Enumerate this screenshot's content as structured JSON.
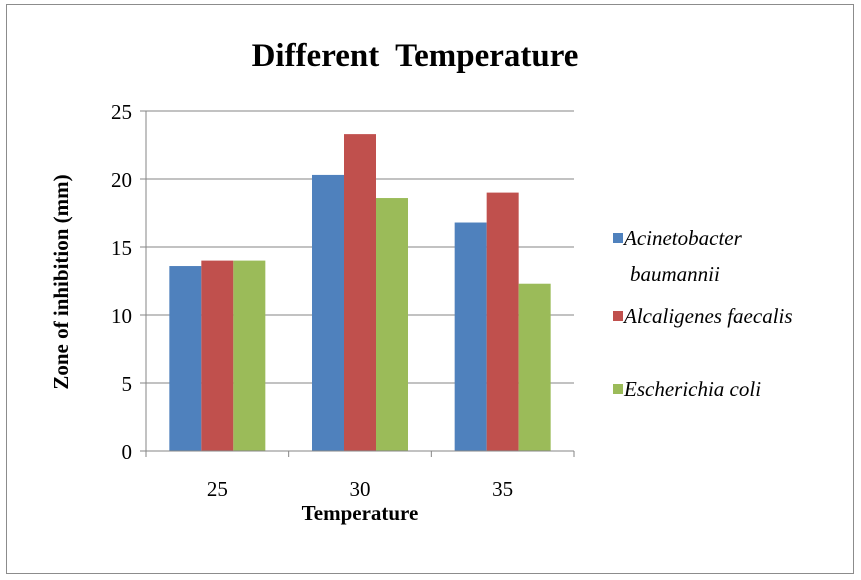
{
  "chart_data": {
    "type": "bar",
    "title": "Different  Temperature",
    "xlabel": "Temperature",
    "ylabel": "Zone of inhibition (mm)",
    "categories": [
      "25",
      "30",
      "35"
    ],
    "series": [
      {
        "name": "Acinetobacter baumannii",
        "name_lines": [
          "Acinetobacter",
          "baumannii"
        ],
        "color": "#4f81bd",
        "values": [
          13.6,
          20.3,
          16.8
        ]
      },
      {
        "name": "Alcaligenes faecalis",
        "name_lines": [
          "Alcaligenes faecalis"
        ],
        "color": "#c0504d",
        "values": [
          14.0,
          23.3,
          19.0
        ]
      },
      {
        "name": "Escherichia coli",
        "name_lines": [
          "Escherichia coli"
        ],
        "color": "#9bbb59",
        "values": [
          14.0,
          18.6,
          12.3
        ]
      }
    ],
    "ylim": [
      0,
      25
    ],
    "yticks": [
      "0",
      "5",
      "10",
      "15",
      "20",
      "25"
    ],
    "grid": true,
    "legend_position": "right"
  }
}
